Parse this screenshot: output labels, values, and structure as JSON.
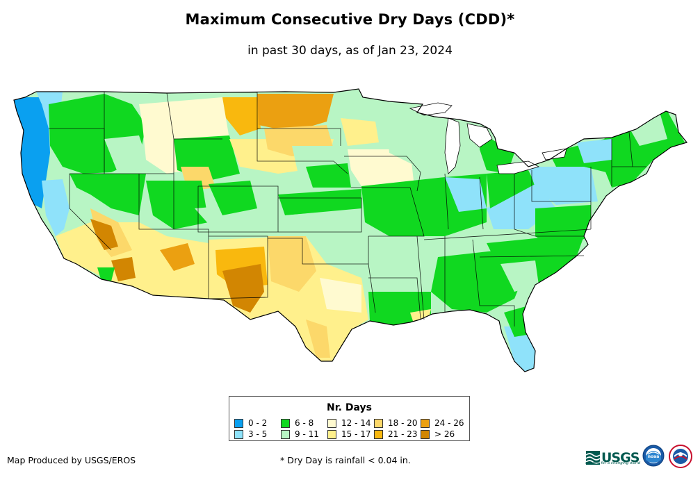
{
  "title": "Maximum Consecutive Dry Days (CDD)*",
  "subtitle": "in past 30 days, as of Jan 23, 2024",
  "legend": {
    "title": "Nr. Days",
    "items": [
      {
        "label": "0 - 2",
        "color": "#0aa0f0"
      },
      {
        "label": "3 - 5",
        "color": "#8fe2fa"
      },
      {
        "label": "6 - 8",
        "color": "#10d820"
      },
      {
        "label": "9 - 11",
        "color": "#b8f5c4"
      },
      {
        "label": "12 - 14",
        "color": "#fffad0"
      },
      {
        "label": "15 - 17",
        "color": "#fff08c"
      },
      {
        "label": "18 - 20",
        "color": "#fcd86a"
      },
      {
        "label": "21 - 23",
        "color": "#f9b80e"
      },
      {
        "label": "24 - 26",
        "color": "#eba011"
      },
      {
        "label": "> 26",
        "color": "#d28602"
      }
    ]
  },
  "footer": {
    "producer": "Map Produced by USGS/EROS",
    "note": "* Dry Day is rainfall < 0.04 in."
  },
  "logos": {
    "usgs": "USGS",
    "usgs_tagline": "science for a changing world",
    "noaa": "noaa"
  }
}
